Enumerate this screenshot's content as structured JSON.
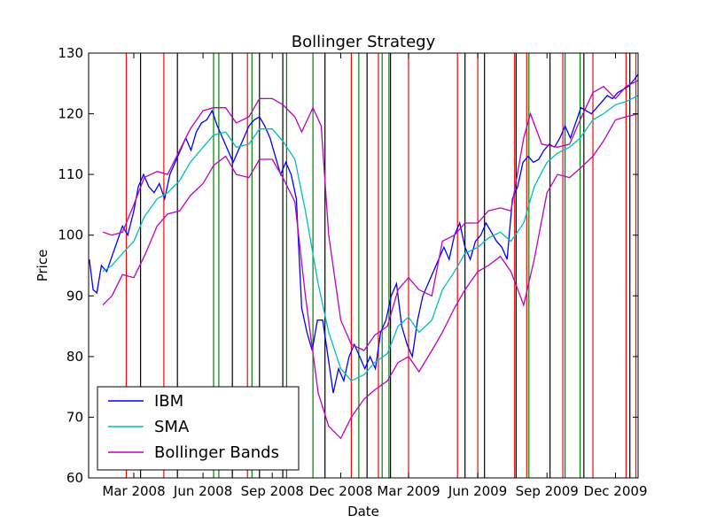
{
  "chart_data": {
    "type": "line",
    "title": "Bollinger Strategy",
    "xlabel": "Date",
    "ylabel": "Price",
    "ylim": [
      60,
      130
    ],
    "yticks": [
      60,
      70,
      80,
      90,
      100,
      110,
      120,
      130
    ],
    "xlim": [
      "2008-01-01",
      "2009-12-31"
    ],
    "xticks": [
      {
        "date": "2008-03-01",
        "label": "Mar 2008"
      },
      {
        "date": "2008-06-01",
        "label": "Jun 2008"
      },
      {
        "date": "2008-09-01",
        "label": "Sep 2008"
      },
      {
        "date": "2008-12-01",
        "label": "Dec 2008"
      },
      {
        "date": "2009-03-01",
        "label": "Mar 2009"
      },
      {
        "date": "2009-06-01",
        "label": "Jun 2009"
      },
      {
        "date": "2009-09-01",
        "label": "Sep 2009"
      },
      {
        "date": "2009-12-01",
        "label": "Dec 2009"
      }
    ],
    "legend": {
      "location": "lower-left"
    },
    "series": [
      {
        "name": "IBM",
        "color": "#0000ff",
        "points": [
          [
            "2008-01-02",
            96.0
          ],
          [
            "2008-01-07",
            91.0
          ],
          [
            "2008-01-12",
            90.5
          ],
          [
            "2008-01-18",
            95.0
          ],
          [
            "2008-01-25",
            94.0
          ],
          [
            "2008-02-01",
            96.5
          ],
          [
            "2008-02-08",
            99.0
          ],
          [
            "2008-02-15",
            101.5
          ],
          [
            "2008-02-22",
            100.0
          ],
          [
            "2008-03-01",
            104.0
          ],
          [
            "2008-03-07",
            108.0
          ],
          [
            "2008-03-14",
            110.0
          ],
          [
            "2008-03-21",
            108.0
          ],
          [
            "2008-03-28",
            107.0
          ],
          [
            "2008-04-04",
            108.5
          ],
          [
            "2008-04-11",
            106.0
          ],
          [
            "2008-04-18",
            110.0
          ],
          [
            "2008-04-25",
            112.0
          ],
          [
            "2008-05-02",
            114.0
          ],
          [
            "2008-05-09",
            116.0
          ],
          [
            "2008-05-16",
            114.0
          ],
          [
            "2008-05-23",
            117.0
          ],
          [
            "2008-05-30",
            118.5
          ],
          [
            "2008-06-06",
            119.0
          ],
          [
            "2008-06-13",
            120.5
          ],
          [
            "2008-06-20",
            118.0
          ],
          [
            "2008-06-27",
            116.0
          ],
          [
            "2008-07-04",
            114.0
          ],
          [
            "2008-07-11",
            112.0
          ],
          [
            "2008-07-18",
            114.0
          ],
          [
            "2008-07-25",
            116.0
          ],
          [
            "2008-08-01",
            118.0
          ],
          [
            "2008-08-08",
            119.0
          ],
          [
            "2008-08-15",
            119.5
          ],
          [
            "2008-08-22",
            118.0
          ],
          [
            "2008-08-29",
            116.0
          ],
          [
            "2008-09-05",
            113.0
          ],
          [
            "2008-09-12",
            110.0
          ],
          [
            "2008-09-19",
            112.0
          ],
          [
            "2008-09-26",
            110.0
          ],
          [
            "2008-10-03",
            106.0
          ],
          [
            "2008-10-10",
            88.0
          ],
          [
            "2008-10-17",
            84.0
          ],
          [
            "2008-10-24",
            81.0
          ],
          [
            "2008-10-31",
            86.0
          ],
          [
            "2008-11-07",
            86.0
          ],
          [
            "2008-11-14",
            80.0
          ],
          [
            "2008-11-21",
            74.0
          ],
          [
            "2008-11-28",
            78.0
          ],
          [
            "2008-12-05",
            76.0
          ],
          [
            "2008-12-12",
            80.0
          ],
          [
            "2008-12-19",
            82.0
          ],
          [
            "2008-12-26",
            80.0
          ],
          [
            "2009-01-02",
            78.0
          ],
          [
            "2009-01-09",
            80.0
          ],
          [
            "2009-01-16",
            78.0
          ],
          [
            "2009-01-23",
            84.0
          ],
          [
            "2009-01-30",
            86.0
          ],
          [
            "2009-02-06",
            90.0
          ],
          [
            "2009-02-13",
            92.0
          ],
          [
            "2009-02-20",
            85.0
          ],
          [
            "2009-02-27",
            82.0
          ],
          [
            "2009-03-06",
            80.0
          ],
          [
            "2009-03-13",
            86.0
          ],
          [
            "2009-03-20",
            90.0
          ],
          [
            "2009-03-27",
            92.0
          ],
          [
            "2009-04-03",
            94.0
          ],
          [
            "2009-04-10",
            96.0
          ],
          [
            "2009-04-17",
            98.0
          ],
          [
            "2009-04-24",
            96.0
          ],
          [
            "2009-05-01",
            100.0
          ],
          [
            "2009-05-08",
            102.0
          ],
          [
            "2009-05-15",
            98.0
          ],
          [
            "2009-05-22",
            96.0
          ],
          [
            "2009-05-29",
            99.0
          ],
          [
            "2009-06-05",
            100.0
          ],
          [
            "2009-06-12",
            102.0
          ],
          [
            "2009-06-19",
            100.5
          ],
          [
            "2009-06-26",
            99.0
          ],
          [
            "2009-07-03",
            98.0
          ],
          [
            "2009-07-10",
            96.0
          ],
          [
            "2009-07-17",
            106.0
          ],
          [
            "2009-07-24",
            108.0
          ],
          [
            "2009-07-31",
            112.0
          ],
          [
            "2009-08-07",
            113.0
          ],
          [
            "2009-08-14",
            112.0
          ],
          [
            "2009-08-21",
            112.5
          ],
          [
            "2009-08-28",
            114.0
          ],
          [
            "2009-09-04",
            115.0
          ],
          [
            "2009-09-11",
            114.5
          ],
          [
            "2009-09-18",
            116.0
          ],
          [
            "2009-09-25",
            118.0
          ],
          [
            "2009-10-02",
            116.0
          ],
          [
            "2009-10-09",
            118.5
          ],
          [
            "2009-10-16",
            121.0
          ],
          [
            "2009-10-23",
            120.5
          ],
          [
            "2009-10-30",
            120.0
          ],
          [
            "2009-11-06",
            121.0
          ],
          [
            "2009-11-13",
            122.0
          ],
          [
            "2009-11-20",
            123.0
          ],
          [
            "2009-11-27",
            122.5
          ],
          [
            "2009-12-04",
            123.5
          ],
          [
            "2009-12-11",
            124.0
          ],
          [
            "2009-12-18",
            124.5
          ],
          [
            "2009-12-25",
            125.5
          ],
          [
            "2009-12-31",
            126.5
          ]
        ]
      },
      {
        "name": "SMA",
        "color": "#00bfbf",
        "points": [
          [
            "2008-01-20",
            94.0
          ],
          [
            "2008-02-01",
            95.0
          ],
          [
            "2008-02-15",
            97.0
          ],
          [
            "2008-03-01",
            99.0
          ],
          [
            "2008-03-15",
            103.0
          ],
          [
            "2008-04-01",
            106.0
          ],
          [
            "2008-04-15",
            107.0
          ],
          [
            "2008-05-01",
            109.0
          ],
          [
            "2008-05-15",
            112.0
          ],
          [
            "2008-06-01",
            114.5
          ],
          [
            "2008-06-15",
            116.5
          ],
          [
            "2008-07-01",
            117.0
          ],
          [
            "2008-07-15",
            114.5
          ],
          [
            "2008-08-01",
            115.0
          ],
          [
            "2008-08-15",
            117.5
          ],
          [
            "2008-09-01",
            117.5
          ],
          [
            "2008-09-15",
            115.5
          ],
          [
            "2008-10-01",
            112.5
          ],
          [
            "2008-10-15",
            104.0
          ],
          [
            "2008-11-01",
            92.0
          ],
          [
            "2008-11-15",
            84.0
          ],
          [
            "2008-12-01",
            78.0
          ],
          [
            "2008-12-15",
            76.0
          ],
          [
            "2009-01-01",
            77.0
          ],
          [
            "2009-01-15",
            79.0
          ],
          [
            "2009-02-01",
            80.5
          ],
          [
            "2009-02-15",
            85.0
          ],
          [
            "2009-03-01",
            86.5
          ],
          [
            "2009-03-15",
            84.0
          ],
          [
            "2009-04-01",
            86.0
          ],
          [
            "2009-04-15",
            91.0
          ],
          [
            "2009-05-01",
            94.0
          ],
          [
            "2009-05-15",
            97.0
          ],
          [
            "2009-06-01",
            98.0
          ],
          [
            "2009-06-15",
            99.5
          ],
          [
            "2009-07-01",
            100.5
          ],
          [
            "2009-07-15",
            99.0
          ],
          [
            "2009-08-01",
            102.0
          ],
          [
            "2009-08-15",
            108.0
          ],
          [
            "2009-09-01",
            112.0
          ],
          [
            "2009-09-15",
            113.5
          ],
          [
            "2009-10-01",
            114.5
          ],
          [
            "2009-10-15",
            116.0
          ],
          [
            "2009-11-01",
            119.0
          ],
          [
            "2009-11-15",
            120.0
          ],
          [
            "2009-12-01",
            121.5
          ],
          [
            "2009-12-15",
            122.0
          ],
          [
            "2009-12-31",
            123.0
          ]
        ]
      },
      {
        "name": "Bollinger Bands",
        "color": "#bf00bf",
        "points": [
          [
            "2008-01-20",
            100.5
          ],
          [
            "2008-02-01",
            100.0
          ],
          [
            "2008-02-15",
            100.5
          ],
          [
            "2008-03-01",
            105.0
          ],
          [
            "2008-03-15",
            109.5
          ],
          [
            "2008-04-01",
            110.5
          ],
          [
            "2008-04-15",
            110.0
          ],
          [
            "2008-05-01",
            114.0
          ],
          [
            "2008-05-15",
            117.5
          ],
          [
            "2008-06-01",
            120.5
          ],
          [
            "2008-06-15",
            121.0
          ],
          [
            "2008-07-01",
            121.0
          ],
          [
            "2008-07-15",
            118.5
          ],
          [
            "2008-08-01",
            119.5
          ],
          [
            "2008-08-15",
            122.5
          ],
          [
            "2008-09-01",
            122.5
          ],
          [
            "2008-09-15",
            121.5
          ],
          [
            "2008-10-01",
            119.5
          ],
          [
            "2008-10-10",
            117.0
          ],
          [
            "2008-10-25",
            121.0
          ],
          [
            "2008-11-05",
            118.0
          ],
          [
            "2008-11-15",
            100.0
          ],
          [
            "2008-12-01",
            86.0
          ],
          [
            "2008-12-15",
            82.0
          ],
          [
            "2009-01-01",
            81.0
          ],
          [
            "2009-01-15",
            83.5
          ],
          [
            "2009-02-01",
            85.0
          ],
          [
            "2009-02-15",
            91.0
          ],
          [
            "2009-03-01",
            93.0
          ],
          [
            "2009-03-15",
            91.0
          ],
          [
            "2009-04-01",
            90.0
          ],
          [
            "2009-04-15",
            99.0
          ],
          [
            "2009-05-01",
            100.0
          ],
          [
            "2009-05-15",
            102.0
          ],
          [
            "2009-06-01",
            102.0
          ],
          [
            "2009-06-15",
            104.0
          ],
          [
            "2009-07-01",
            104.5
          ],
          [
            "2009-07-15",
            104.0
          ],
          [
            "2009-08-01",
            116.0
          ],
          [
            "2009-08-10",
            120.0
          ],
          [
            "2009-08-25",
            115.0
          ],
          [
            "2009-09-15",
            114.5
          ],
          [
            "2009-10-01",
            115.0
          ],
          [
            "2009-10-15",
            119.0
          ],
          [
            "2009-11-01",
            123.5
          ],
          [
            "2009-11-15",
            124.5
          ],
          [
            "2009-12-01",
            122.5
          ],
          [
            "2009-12-15",
            124.5
          ],
          [
            "2009-12-31",
            125.5
          ]
        ],
        "lower_points": [
          [
            "2008-01-20",
            88.5
          ],
          [
            "2008-02-01",
            90.0
          ],
          [
            "2008-02-15",
            93.5
          ],
          [
            "2008-03-01",
            93.0
          ],
          [
            "2008-03-15",
            96.5
          ],
          [
            "2008-04-01",
            101.5
          ],
          [
            "2008-04-15",
            103.5
          ],
          [
            "2008-05-01",
            104.0
          ],
          [
            "2008-05-15",
            106.5
          ],
          [
            "2008-06-01",
            108.5
          ],
          [
            "2008-06-15",
            111.5
          ],
          [
            "2008-07-01",
            113.0
          ],
          [
            "2008-07-15",
            110.0
          ],
          [
            "2008-08-01",
            109.5
          ],
          [
            "2008-08-15",
            112.5
          ],
          [
            "2008-09-01",
            112.5
          ],
          [
            "2008-09-15",
            109.5
          ],
          [
            "2008-10-01",
            105.5
          ],
          [
            "2008-10-15",
            90.0
          ],
          [
            "2008-11-01",
            74.0
          ],
          [
            "2008-11-15",
            68.5
          ],
          [
            "2008-12-01",
            66.5
          ],
          [
            "2008-12-15",
            70.0
          ],
          [
            "2009-01-01",
            73.0
          ],
          [
            "2009-01-15",
            74.5
          ],
          [
            "2009-02-01",
            76.0
          ],
          [
            "2009-02-15",
            79.0
          ],
          [
            "2009-03-01",
            80.0
          ],
          [
            "2009-03-15",
            77.5
          ],
          [
            "2009-04-01",
            81.0
          ],
          [
            "2009-04-15",
            84.0
          ],
          [
            "2009-05-01",
            88.0
          ],
          [
            "2009-05-15",
            91.0
          ],
          [
            "2009-06-01",
            94.0
          ],
          [
            "2009-06-15",
            95.0
          ],
          [
            "2009-07-01",
            96.5
          ],
          [
            "2009-07-15",
            94.0
          ],
          [
            "2009-08-01",
            88.5
          ],
          [
            "2009-08-15",
            96.0
          ],
          [
            "2009-09-01",
            107.0
          ],
          [
            "2009-09-15",
            110.0
          ],
          [
            "2009-10-01",
            109.5
          ],
          [
            "2009-10-15",
            111.0
          ],
          [
            "2009-11-01",
            113.0
          ],
          [
            "2009-11-15",
            115.5
          ],
          [
            "2009-12-01",
            119.0
          ],
          [
            "2009-12-15",
            119.5
          ],
          [
            "2009-12-31",
            120.0
          ]
        ]
      }
    ],
    "signal_lines": [
      {
        "color": "#ff0000",
        "dates": [
          "2008-02-20",
          "2008-04-10",
          "2008-07-30",
          "2008-12-15",
          "2009-01-20",
          "2009-03-01",
          "2009-05-05",
          "2009-06-01",
          "2009-07-20",
          "2009-08-05",
          "2009-09-22",
          "2009-11-01",
          "2009-12-15",
          "2009-12-28"
        ]
      },
      {
        "color": "#008000",
        "dates": [
          "2008-06-15",
          "2008-06-22",
          "2008-08-05",
          "2008-09-20",
          "2008-10-25",
          "2008-12-25",
          "2009-01-25",
          "2009-02-03",
          "2009-08-08",
          "2009-09-25",
          "2009-10-15"
        ]
      },
      {
        "color": "#000000",
        "dates": [
          "2008-03-10",
          "2008-04-28",
          "2008-07-10",
          "2008-08-15",
          "2008-09-15",
          "2008-11-10",
          "2009-01-05",
          "2009-02-05",
          "2009-05-15",
          "2009-06-10",
          "2009-07-22",
          "2009-09-05",
          "2009-10-20",
          "2009-12-20"
        ]
      }
    ]
  }
}
